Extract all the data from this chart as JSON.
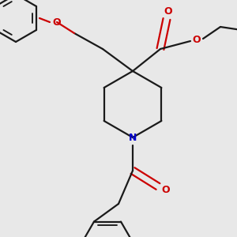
{
  "bg_color": "#e8e8e8",
  "bond_color": "#1a1a1a",
  "oxygen_color": "#cc0000",
  "nitrogen_color": "#0000cc",
  "lw": 1.6,
  "figsize": [
    3.0,
    3.0
  ],
  "dpi": 100,
  "xlim": [
    0,
    300
  ],
  "ylim": [
    0,
    300
  ]
}
